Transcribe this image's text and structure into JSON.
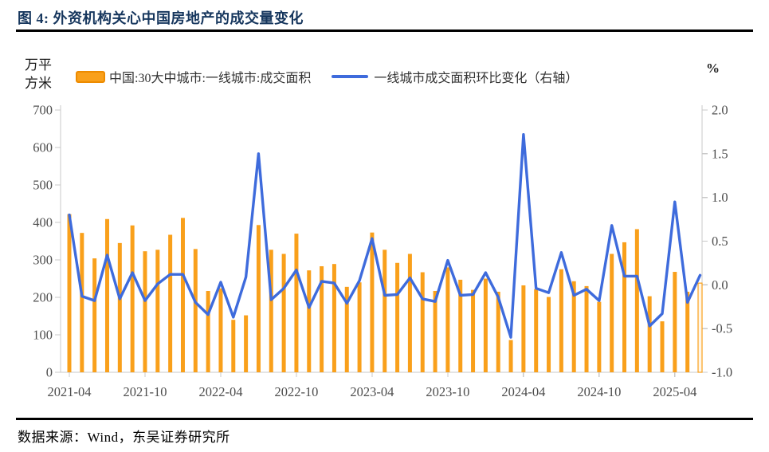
{
  "header": {
    "title": "图 4: 外资机构关心中国房地产的成交量变化"
  },
  "legend": {
    "bar_label": "中国:30大中城市:一线城市:成交面积",
    "line_label": "一线城市成交面积环比变化（右轴）"
  },
  "axes": {
    "left_unit_line1": "万平",
    "left_unit_line2": "方米",
    "right_unit": "%",
    "left_ticks": [
      "700",
      "600",
      "500",
      "400",
      "300",
      "200",
      "100",
      "0"
    ],
    "right_ticks": [
      "2.0",
      "1.5",
      "1.0",
      "0.5",
      "0.0",
      "-0.5",
      "-1.0"
    ],
    "x_tick_labels": [
      "2021-04",
      "2021-10",
      "2022-04",
      "2022-10",
      "2023-04",
      "2023-10",
      "2024-04",
      "2024-10",
      "2025-04"
    ]
  },
  "footer": {
    "source": "数据来源：Wind，东吴证券研究所"
  },
  "colors": {
    "bar": "#F9A01B",
    "bar_hollow_fill": "#FFF6E8",
    "line": "#3E6BDC",
    "title": "#17375E",
    "axis_text": "#4D4D4D",
    "spine": "#C8C8C8"
  },
  "chart_data": {
    "type": "bar",
    "title": "图 4: 外资机构关心中国房地产的成交量变化",
    "left_ylabel": "万平方米",
    "right_ylabel": "%",
    "left_ylim": [
      0,
      700
    ],
    "right_ylim": [
      -1.0,
      2.0
    ],
    "grid": false,
    "legend_position": "top",
    "last_bar_hollow": true,
    "categories": [
      "2021-04",
      "2021-05",
      "2021-06",
      "2021-07",
      "2021-08",
      "2021-09",
      "2021-10",
      "2021-11",
      "2021-12",
      "2022-01",
      "2022-02",
      "2022-03",
      "2022-04",
      "2022-05",
      "2022-06",
      "2022-07",
      "2022-08",
      "2022-09",
      "2022-10",
      "2022-11",
      "2022-12",
      "2023-01",
      "2023-02",
      "2023-03",
      "2023-04",
      "2023-05",
      "2023-06",
      "2023-07",
      "2023-08",
      "2023-09",
      "2023-10",
      "2023-11",
      "2023-12",
      "2024-01",
      "2024-02",
      "2024-03",
      "2024-04",
      "2024-05",
      "2024-06",
      "2024-07",
      "2024-08",
      "2024-09",
      "2024-10",
      "2024-11",
      "2024-12",
      "2025-01",
      "2025-02",
      "2025-03",
      "2025-04",
      "2025-05",
      "2025-06"
    ],
    "series": [
      {
        "name": "中国:30大中城市:一线城市:成交面积",
        "type": "bar",
        "axis": "left",
        "values": [
          422,
          372,
          304,
          409,
          345,
          392,
          323,
          327,
          367,
          412,
          329,
          217,
          224,
          140,
          152,
          393,
          327,
          316,
          370,
          272,
          283,
          289,
          228,
          240,
          373,
          327,
          292,
          316,
          267,
          217,
          280,
          247,
          220,
          250,
          215,
          86,
          232,
          222,
          201,
          275,
          243,
          230,
          188,
          316,
          347,
          382,
          203,
          136,
          268,
          215,
          238
        ]
      },
      {
        "name": "一线城市成交面积环比变化（右轴）",
        "type": "line",
        "axis": "right",
        "values": [
          0.8,
          -0.13,
          -0.18,
          0.34,
          -0.16,
          0.14,
          -0.18,
          0.01,
          0.12,
          0.12,
          -0.2,
          -0.34,
          0.03,
          -0.37,
          0.09,
          1.5,
          -0.17,
          -0.04,
          0.17,
          -0.26,
          0.04,
          0.02,
          -0.21,
          0.05,
          0.53,
          -0.12,
          -0.11,
          0.08,
          -0.16,
          -0.19,
          0.28,
          -0.12,
          -0.11,
          0.14,
          -0.14,
          -0.6,
          1.72,
          -0.04,
          -0.09,
          0.37,
          -0.12,
          -0.05,
          -0.18,
          0.68,
          0.1,
          0.1,
          -0.47,
          -0.33,
          0.95,
          -0.2,
          0.11
        ]
      }
    ]
  }
}
